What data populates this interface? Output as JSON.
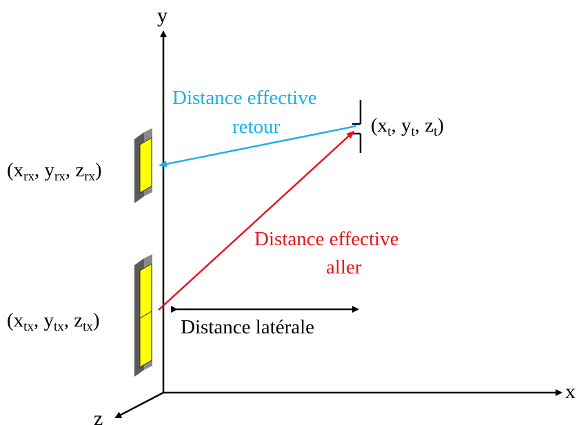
{
  "axes": {
    "x": "x",
    "y": "y",
    "z": "z"
  },
  "colors": {
    "return_path": "#1ab0e8",
    "outgoing_path": "#e8141a",
    "axis": "#000000",
    "antenna_frame": "#6b6b6b",
    "antenna_element": "#ffff00"
  },
  "labels": {
    "return_distance": [
      "Distance effective",
      "retour"
    ],
    "outgoing_distance": [
      "Distance effective",
      "aller"
    ],
    "lateral_distance": "Distance latérale"
  },
  "points": {
    "target": {
      "x": "x",
      "x_sub": "t",
      "y": "y",
      "y_sub": "t",
      "z": "z",
      "z_sub": "t"
    },
    "receiver": {
      "x": "x",
      "x_sub": "rx",
      "y": "y",
      "y_sub": "rx",
      "z": "z",
      "z_sub": "rx"
    },
    "transmitter": {
      "x": "x",
      "x_sub": "tx",
      "y": "y",
      "y_sub": "tx",
      "z": "z",
      "z_sub": "tx"
    }
  },
  "icons": {
    "antenna": "patch-antenna-icon",
    "target": "point-target-icon"
  }
}
